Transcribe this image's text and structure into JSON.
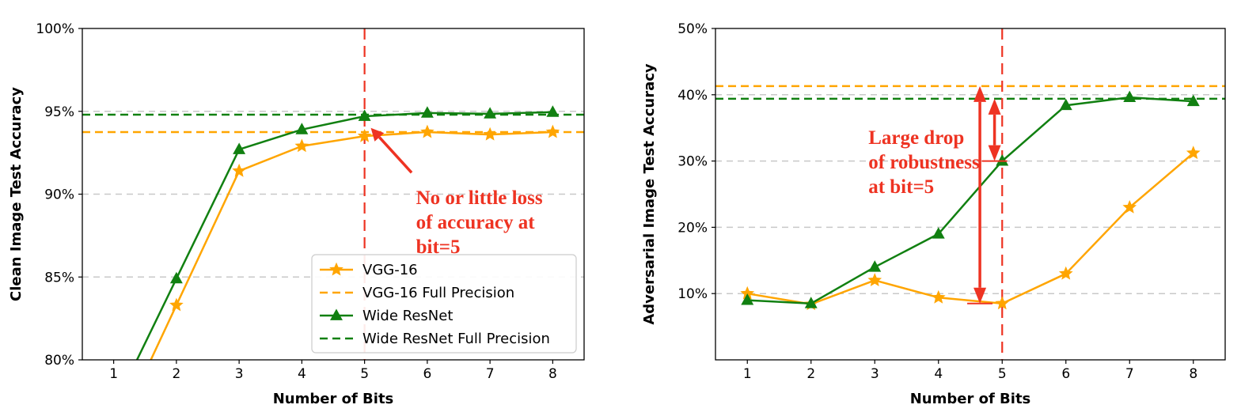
{
  "chart_data": [
    {
      "type": "line",
      "xlabel": "Number of Bits",
      "ylabel": "Clean Image Test Accuracy",
      "xlim": [
        0.5,
        8.5
      ],
      "ylim": [
        80,
        100
      ],
      "xticks": [
        1,
        2,
        3,
        4,
        5,
        6,
        7,
        8
      ],
      "xtick_labels": [
        "1",
        "2",
        "3",
        "4",
        "5",
        "6",
        "7",
        "8"
      ],
      "yticks": [
        80,
        85,
        90,
        95,
        100
      ],
      "ytick_labels": [
        "80%",
        "85%",
        "90%",
        "95%",
        "100%"
      ],
      "grid": [
        85,
        90,
        95
      ],
      "legend_position": "lower-right",
      "series": [
        {
          "name": "VGG-16",
          "marker": "star",
          "color": "#FFA500",
          "x": [
            2,
            3,
            4,
            5,
            6,
            7,
            8
          ],
          "y": [
            83.3,
            91.4,
            92.9,
            93.5,
            93.75,
            93.6,
            93.75
          ],
          "drop_from_below": true
        },
        {
          "name": "Wide ResNet",
          "marker": "triangle",
          "color": "#118011",
          "x": [
            2,
            3,
            4,
            5,
            6,
            7,
            8
          ],
          "y": [
            84.9,
            92.7,
            93.9,
            94.7,
            94.9,
            94.85,
            94.95
          ],
          "drop_from_below": true
        }
      ],
      "hlines": [
        {
          "name": "VGG-16 Full Precision",
          "y": 93.75,
          "color": "#FFA500"
        },
        {
          "name": "Wide ResNet Full Precision",
          "y": 94.8,
          "color": "#118011"
        }
      ],
      "vline": {
        "x": 5,
        "color": "#EE3322"
      },
      "annotation": {
        "lines": [
          "No or little loss",
          "of accuracy at",
          "bit=5"
        ],
        "arrow_target": [
          5.1,
          94.0
        ],
        "arrow_from": [
          5.75,
          91.3
        ],
        "text_at": [
          5.82,
          89.4
        ],
        "color": "#EE3322"
      },
      "legend": [
        {
          "label": "VGG-16",
          "style": "solid-star",
          "color": "#FFA500"
        },
        {
          "label": "VGG-16 Full Precision",
          "style": "dashed",
          "color": "#FFA500"
        },
        {
          "label": "Wide ResNet",
          "style": "solid-triangle",
          "color": "#118011"
        },
        {
          "label": "Wide ResNet Full Precision",
          "style": "dashed",
          "color": "#118011"
        }
      ]
    },
    {
      "type": "line",
      "xlabel": "Number of Bits",
      "ylabel": "Adversarial Image Test Accuracy",
      "xlim": [
        0.5,
        8.5
      ],
      "ylim": [
        0,
        50
      ],
      "xticks": [
        1,
        2,
        3,
        4,
        5,
        6,
        7,
        8
      ],
      "xtick_labels": [
        "1",
        "2",
        "3",
        "4",
        "5",
        "6",
        "7",
        "8"
      ],
      "yticks": [
        10,
        20,
        30,
        40,
        50
      ],
      "ytick_labels": [
        "10%",
        "20%",
        "30%",
        "40%",
        "50%"
      ],
      "grid": [
        10,
        20,
        30,
        40
      ],
      "series": [
        {
          "name": "VGG-16",
          "marker": "star",
          "color": "#FFA500",
          "x": [
            1,
            2,
            3,
            4,
            5,
            6,
            7,
            8
          ],
          "y": [
            10.0,
            8.4,
            12.0,
            9.4,
            8.5,
            13.0,
            23.0,
            31.2
          ]
        },
        {
          "name": "Wide ResNet",
          "marker": "triangle",
          "color": "#118011",
          "x": [
            1,
            2,
            3,
            4,
            5,
            6,
            7,
            8
          ],
          "y": [
            9.0,
            8.5,
            14.0,
            19.0,
            30.0,
            38.4,
            39.6,
            39.0
          ]
        }
      ],
      "hlines": [
        {
          "name": "VGG-16 Full Precision",
          "y": 41.3,
          "color": "#FFA500"
        },
        {
          "name": "Wide ResNet Full Precision",
          "y": 39.4,
          "color": "#118011"
        }
      ],
      "vline": {
        "x": 5,
        "color": "#EE3322"
      },
      "double_arrows": [
        {
          "x": 4.65,
          "y1": 8.5,
          "y2": 41.3,
          "color": "#EE3322"
        },
        {
          "x": 4.88,
          "y1": 30.0,
          "y2": 39.4,
          "color": "#EE3322"
        }
      ],
      "annotation": {
        "lines": [
          "Large drop",
          "of robustness",
          "at bit=5"
        ],
        "text_at": [
          2.9,
          32.6
        ],
        "color": "#EE3322"
      }
    }
  ]
}
